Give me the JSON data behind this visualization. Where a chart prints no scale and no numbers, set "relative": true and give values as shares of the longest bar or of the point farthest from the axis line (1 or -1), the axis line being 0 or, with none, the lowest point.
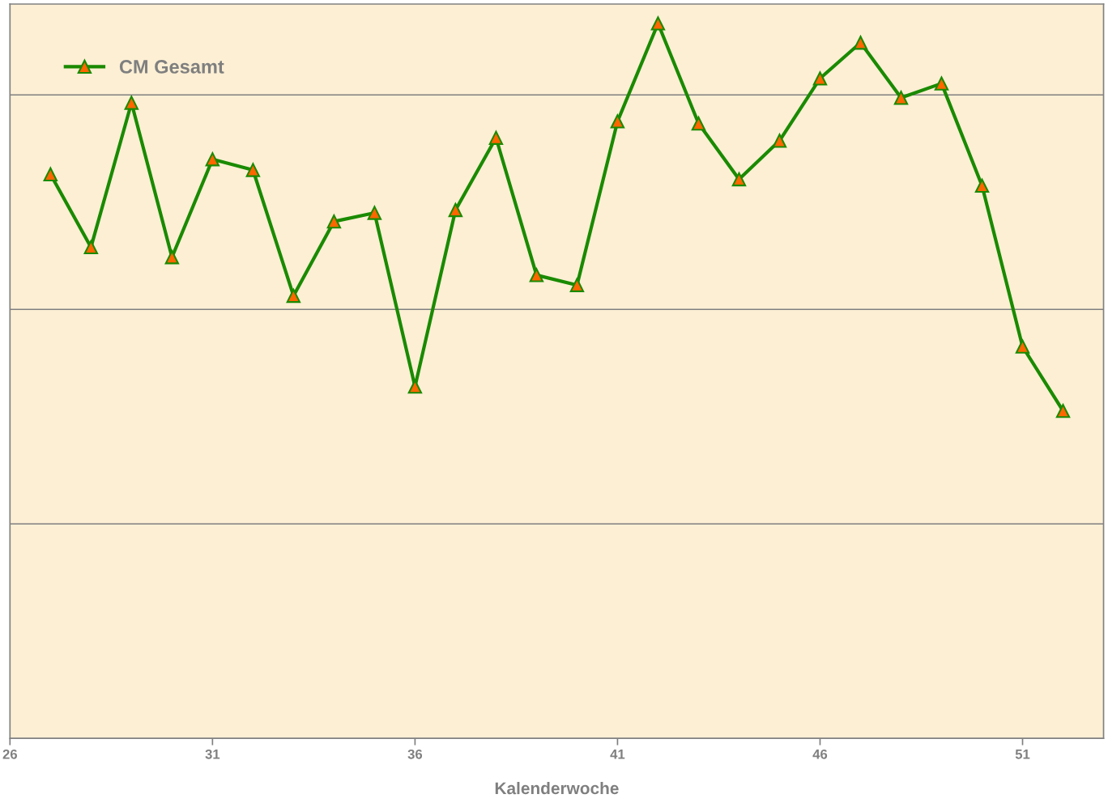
{
  "chart_data": {
    "type": "line",
    "xlabel": "Kalenderwoche",
    "relative": true,
    "x": [
      27,
      28,
      29,
      30,
      31,
      32,
      33,
      34,
      35,
      36,
      37,
      38,
      39,
      40,
      41,
      42,
      43,
      44,
      45,
      46,
      47,
      48,
      49,
      50,
      51,
      52
    ],
    "xlim": [
      26,
      53
    ],
    "xticks": [
      26,
      31,
      36,
      41,
      46,
      51
    ],
    "series": [
      {
        "name": "CM Gesamt",
        "color": "#1a8a00",
        "values": [
          0.789,
          0.687,
          0.889,
          0.673,
          0.81,
          0.795,
          0.619,
          0.723,
          0.735,
          0.492,
          0.739,
          0.84,
          0.648,
          0.634,
          0.863,
          1,
          0.86,
          0.782,
          0.836,
          0.923,
          0.973,
          0.896,
          0.916,
          0.773,
          0.548,
          0.458
        ]
      }
    ],
    "marker": "triangle",
    "line_style": "solid",
    "grid": "y",
    "legend": "top left"
  }
}
